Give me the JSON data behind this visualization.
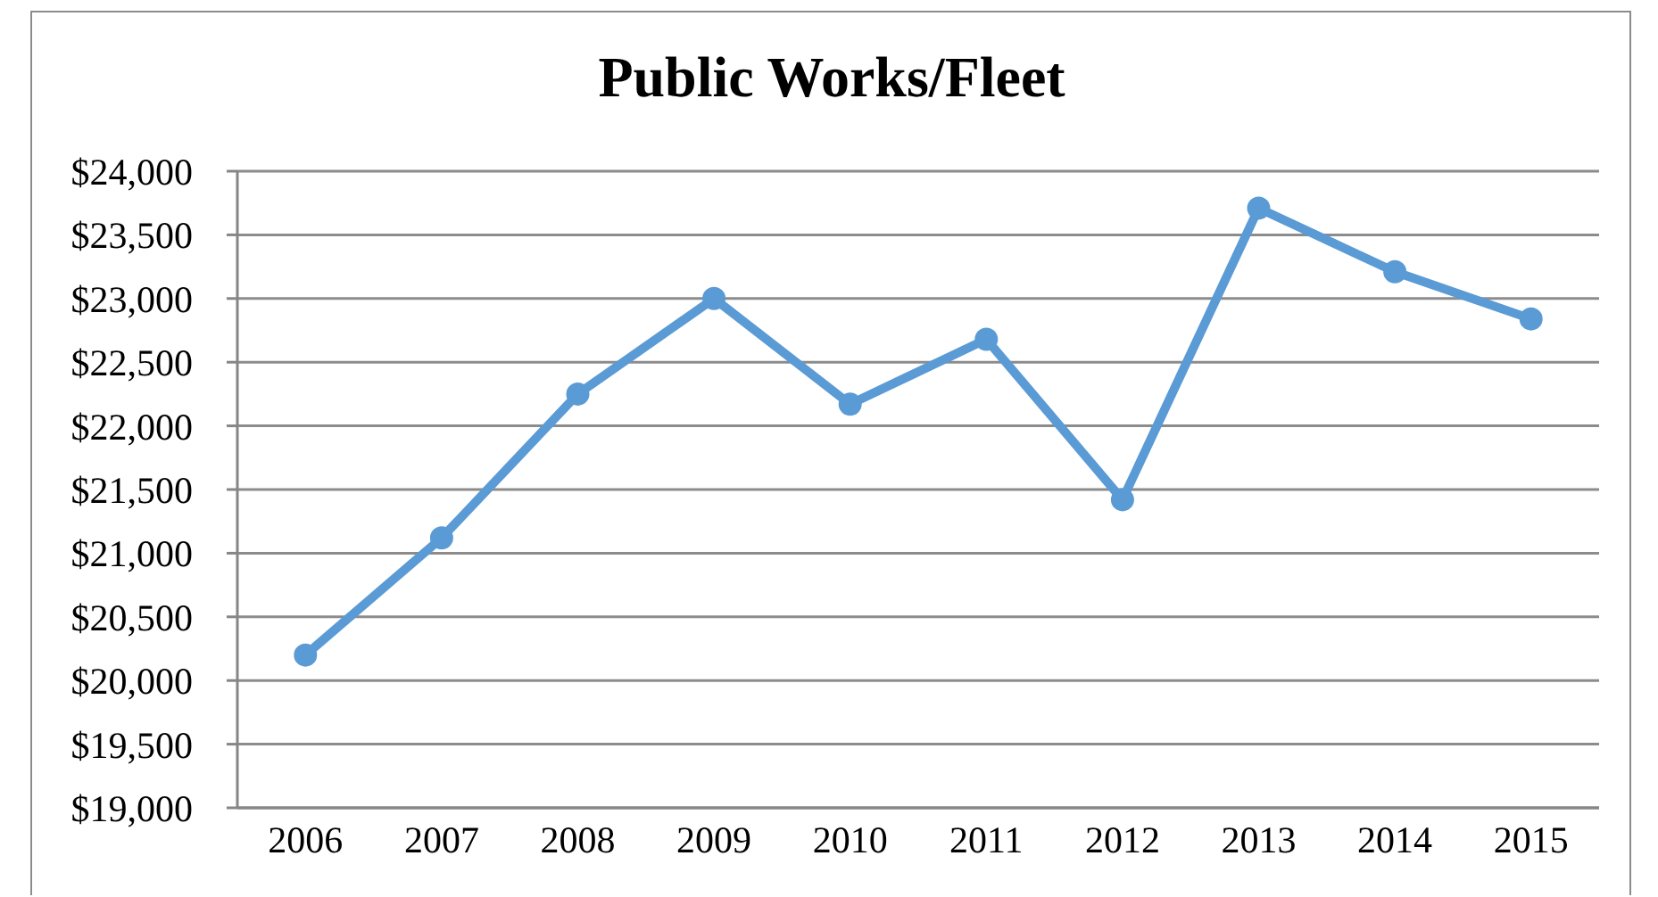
{
  "chart_data": {
    "type": "line",
    "title": "Public Works/Fleet",
    "categories": [
      "2006",
      "2007",
      "2008",
      "2009",
      "2010",
      "2011",
      "2012",
      "2013",
      "2014",
      "2015"
    ],
    "series": [
      {
        "color": "#5b9bd5",
        "values": [
          20200,
          21120,
          22250,
          23000,
          22170,
          22680,
          21420,
          23710,
          23210,
          22840
        ]
      }
    ],
    "ylim": [
      19000,
      24000
    ],
    "yticks": [
      {
        "value": 19000,
        "label": "$19,000"
      },
      {
        "value": 19500,
        "label": "$19,500"
      },
      {
        "value": 20000,
        "label": "$20,000"
      },
      {
        "value": 20500,
        "label": "$20,500"
      },
      {
        "value": 21000,
        "label": "$21,000"
      },
      {
        "value": 21500,
        "label": "$21,500"
      },
      {
        "value": 22000,
        "label": "$22,000"
      },
      {
        "value": 22500,
        "label": "$22,500"
      },
      {
        "value": 23000,
        "label": "$23,000"
      },
      {
        "value": 23500,
        "label": "$23,500"
      },
      {
        "value": 24000,
        "label": "$24,000"
      }
    ],
    "grid": "y",
    "marker": "circle",
    "line_style": "solid"
  }
}
